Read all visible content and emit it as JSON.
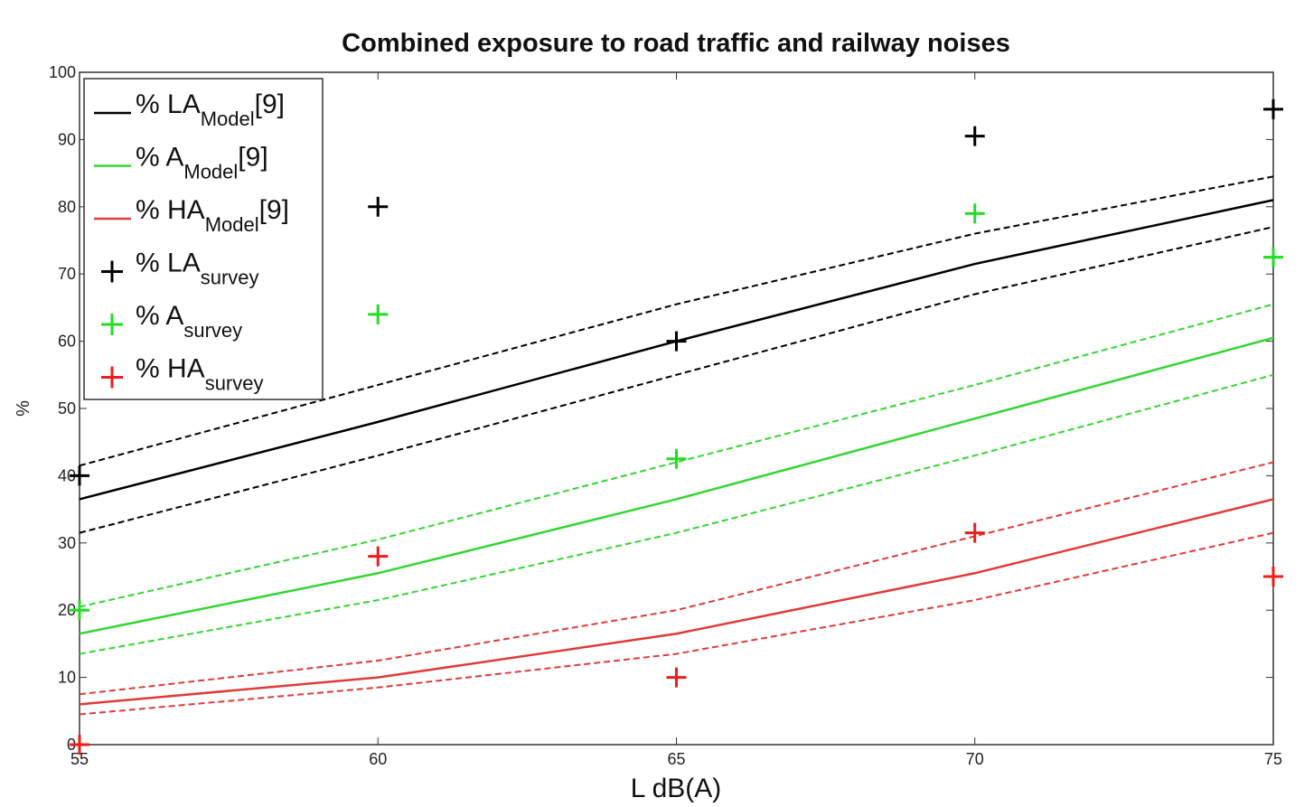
{
  "chart_data": {
    "type": "line",
    "title": "Combined exposure to road traffic and railway noises",
    "xlabel": "L dB(A)",
    "ylabel": "%",
    "x": [
      55,
      60,
      65,
      70,
      75
    ],
    "xlim": [
      55,
      75
    ],
    "xticks": [
      55,
      60,
      65,
      70,
      75
    ],
    "ylim": [
      0,
      100
    ],
    "yticks": [
      0,
      10,
      20,
      30,
      40,
      50,
      60,
      70,
      80,
      90,
      100
    ],
    "grid": false,
    "legend": "upper left",
    "series": [
      {
        "name": "% LA",
        "name_sub": "Model",
        "name_ref": "[9]",
        "color": "#000000",
        "style": "line",
        "values": [
          36.5,
          48,
          60,
          71.5,
          81
        ],
        "upper": [
          41.5,
          53.5,
          65.5,
          76,
          84.5
        ],
        "lower": [
          31.5,
          43,
          55,
          67,
          77
        ]
      },
      {
        "name": "% A",
        "name_sub": "Model",
        "name_ref": "[9]",
        "color": "#33d633",
        "style": "line",
        "values": [
          16.5,
          25.5,
          36.5,
          48.5,
          60.5
        ],
        "upper": [
          20.5,
          30.5,
          42,
          53.5,
          65.5
        ],
        "lower": [
          13.5,
          21.5,
          31.5,
          43,
          55
        ]
      },
      {
        "name": "% HA",
        "name_sub": "Model",
        "name_ref": "[9]",
        "color": "#e03a3a",
        "style": "line",
        "values": [
          6,
          10,
          16.5,
          25.5,
          36.5
        ],
        "upper": [
          7.5,
          12.5,
          20,
          31,
          42
        ],
        "lower": [
          4.5,
          8.5,
          13.5,
          21.5,
          31.5
        ]
      },
      {
        "name": "% LA",
        "name_sub": "survey",
        "color": "#000000",
        "style": "marker",
        "values": [
          40,
          80,
          60,
          90.5,
          94.5
        ]
      },
      {
        "name": "% A",
        "name_sub": "survey",
        "color": "#22dd22",
        "style": "marker",
        "values": [
          20,
          64,
          42.5,
          79,
          72.5
        ]
      },
      {
        "name": "% HA",
        "name_sub": "survey",
        "color": "#ee1c1c",
        "style": "marker",
        "values": [
          0,
          28,
          10,
          31.5,
          25
        ]
      }
    ]
  }
}
